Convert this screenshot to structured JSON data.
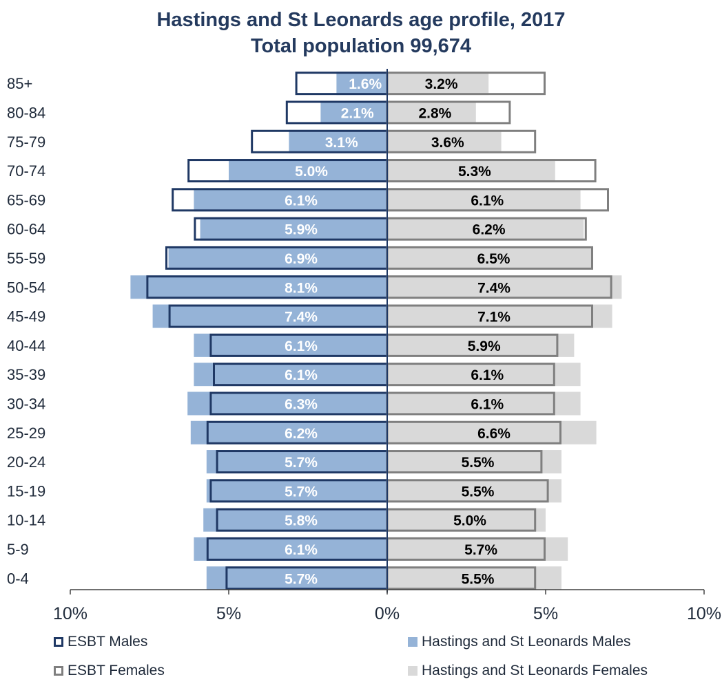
{
  "chart_data": {
    "type": "bar",
    "title": "Hastings and St Leonards age profile, 2017",
    "subtitle": "Total population 99,674",
    "orientation": "horizontal-pyramid",
    "categories": [
      "85+",
      "80-84",
      "75-79",
      "70-74",
      "65-69",
      "60-64",
      "55-59",
      "50-54",
      "45-49",
      "40-44",
      "35-39",
      "30-34",
      "25-29",
      "20-24",
      "15-19",
      "10-14",
      "5-9",
      "0-4"
    ],
    "x_ticks": [
      "10%",
      "5%",
      "0%",
      "5%",
      "10%"
    ],
    "xlim": [
      -10,
      10
    ],
    "colors": {
      "hsl_males": "#95b3d7",
      "hsl_females": "#d9d9d9",
      "esbt_males_outline": "#1f3864",
      "esbt_females_outline": "#7f7f7f",
      "title": "#243a5e"
    },
    "series": [
      {
        "name": "ESBT Males",
        "style": "outline",
        "side": "left",
        "values": [
          2.9,
          3.2,
          4.3,
          6.3,
          6.8,
          6.1,
          7.0,
          7.6,
          6.9,
          5.6,
          5.5,
          5.6,
          5.7,
          5.4,
          5.6,
          5.4,
          5.7,
          5.1
        ]
      },
      {
        "name": "Hastings and St Leonards Males",
        "style": "fill",
        "side": "left",
        "values": [
          1.6,
          2.1,
          3.1,
          5.0,
          6.1,
          5.9,
          6.9,
          8.1,
          7.4,
          6.1,
          6.1,
          6.3,
          6.2,
          5.7,
          5.7,
          5.8,
          6.1,
          5.7
        ],
        "labels": [
          "1.6%",
          "2.1%",
          "3.1%",
          "5.0%",
          "6.1%",
          "5.9%",
          "6.9%",
          "8.1%",
          "7.4%",
          "6.1%",
          "6.1%",
          "6.3%",
          "6.2%",
          "5.7%",
          "5.7%",
          "5.8%",
          "6.1%",
          "5.7%"
        ]
      },
      {
        "name": "ESBT Females",
        "style": "outline",
        "side": "right",
        "values": [
          5.0,
          3.9,
          4.7,
          6.6,
          7.0,
          6.3,
          6.5,
          7.1,
          6.5,
          5.4,
          5.3,
          5.3,
          5.5,
          4.9,
          5.1,
          4.7,
          5.0,
          4.7
        ],
        "legend_labels": []
      },
      {
        "name": "Hastings and St Leonards Females",
        "style": "fill",
        "side": "right",
        "values": [
          3.2,
          2.8,
          3.6,
          5.3,
          6.1,
          6.2,
          6.5,
          7.4,
          7.1,
          5.9,
          6.1,
          6.1,
          6.6,
          5.5,
          5.5,
          5.0,
          5.7,
          5.5
        ],
        "labels": [
          "3.2%",
          "2.8%",
          "3.6%",
          "5.3%",
          "6.1%",
          "6.2%",
          "6.5%",
          "7.4%",
          "7.1%",
          "5.9%",
          "6.1%",
          "6.1%",
          "6.6%",
          "5.5%",
          "5.5%",
          "5.0%",
          "5.7%",
          "5.5%"
        ]
      }
    ],
    "legend": [
      {
        "label": "ESBT Males",
        "kind": "outline",
        "color": "#1f3864"
      },
      {
        "label": "Hastings and St Leonards Males",
        "kind": "fill",
        "color": "#95b3d7"
      },
      {
        "label": "ESBT Females",
        "kind": "outline",
        "color": "#7f7f7f"
      },
      {
        "label": "Hastings and St Leonards Females",
        "kind": "fill",
        "color": "#d9d9d9"
      }
    ],
    "legend_placement": "bottom",
    "grid": false
  }
}
